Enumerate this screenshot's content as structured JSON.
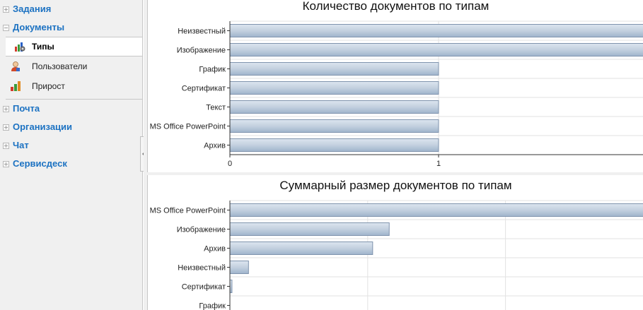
{
  "sidebar": {
    "groups": [
      {
        "label": "Задания",
        "state": "collapsed"
      },
      {
        "label": "Документы",
        "state": "expanded",
        "items": [
          {
            "label": "Типы",
            "icon": "types-chart-gear-icon",
            "active": true
          },
          {
            "label": "Пользователи",
            "icon": "user-icon",
            "active": false
          },
          {
            "label": "Прирост",
            "icon": "bar-chart-icon",
            "active": false
          }
        ]
      },
      {
        "label": "Почта",
        "state": "collapsed"
      },
      {
        "label": "Организации",
        "state": "collapsed"
      },
      {
        "label": "Чат",
        "state": "collapsed"
      },
      {
        "label": "Сервисдеск",
        "state": "collapsed"
      }
    ]
  },
  "colors": {
    "link_blue": "#1c72c2",
    "bar_fill_top": "#dce5ef",
    "bar_fill_bottom": "#9fb4cc",
    "bar_stroke": "#7f93ad"
  },
  "chart_data": [
    {
      "type": "bar",
      "orientation": "horizontal",
      "title": "Количество документов по типам",
      "categories": [
        "Неизвестный",
        "Изображение",
        "График",
        "Сертификат",
        "Текст",
        "MS Office PowerPoint",
        "Архив"
      ],
      "values": [
        2,
        2,
        1,
        1,
        1,
        1,
        1
      ],
      "xlim": [
        0,
        2
      ],
      "xticks": [
        "0",
        "1"
      ],
      "grid": true
    },
    {
      "type": "bar",
      "orientation": "horizontal",
      "title": "Суммарный размер документов по типам",
      "categories": [
        "MS Office PowerPoint",
        "Изображение",
        "Архив",
        "Неизвестный",
        "Сертификат",
        "График"
      ],
      "values": [
        100,
        38.5,
        34.5,
        4.5,
        0.5,
        0
      ],
      "xlim": [
        0,
        100
      ],
      "grid": true
    }
  ]
}
